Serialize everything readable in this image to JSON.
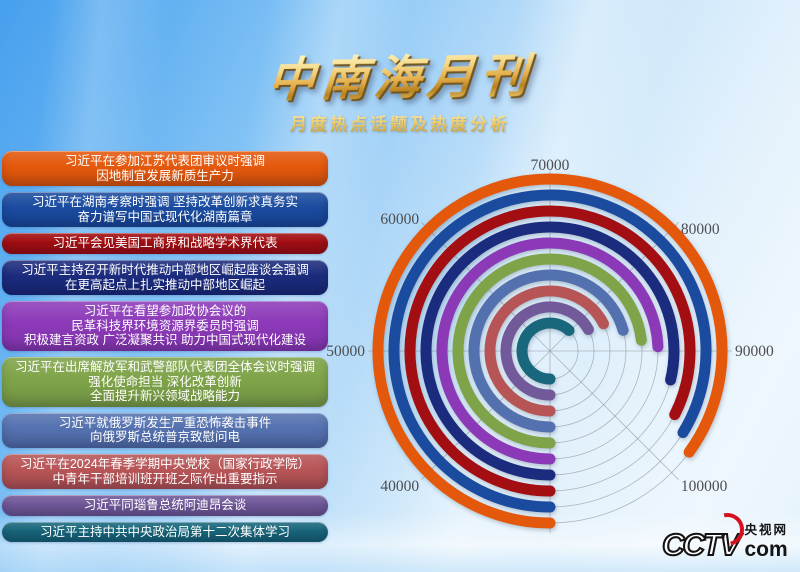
{
  "title": "中南海月刊",
  "subtitle": "月度热点话题及热度分析",
  "logo": {
    "wordmark": "CCTV",
    "site_cn": "央视网",
    "site_suffix": "com"
  },
  "topics": [
    {
      "color": "#E4580C",
      "lines": [
        "习近平在参加江苏代表团审议时强调",
        "因地制宜发展新质生产力"
      ]
    },
    {
      "color": "#1A4B9F",
      "lines": [
        "习近平在湖南考察时强调 坚持改革创新求真务实",
        "奋力谱写中国式现代化湖南篇章"
      ]
    },
    {
      "color": "#A30E12",
      "lines": [
        "习近平会见美国工商界和战略学术界代表"
      ]
    },
    {
      "color": "#1B2B7D",
      "lines": [
        "习近平主持召开新时代推动中部地区崛起座谈会强调",
        "在更高起点上扎实推动中部地区崛起"
      ]
    },
    {
      "color": "#8C39B8",
      "lines": [
        "习近平在看望参加政协会议的",
        "民革科技界环境资源界委员时强调",
        "积极建言资政 广泛凝聚共识 助力中国式现代化建设"
      ]
    },
    {
      "color": "#7EA348",
      "lines": [
        "习近平在出席解放军和武警部队代表团全体会议时强调",
        "强化使命担当 深化改革创新",
        "全面提升新兴领域战略能力"
      ]
    },
    {
      "color": "#5471AF",
      "lines": [
        "习近平就俄罗斯发生严重恐怖袭击事件",
        "向俄罗斯总统普京致慰问电"
      ]
    },
    {
      "color": "#B75456",
      "lines": [
        "习近平在2024年春季学期中央党校（国家行政学院）",
        "中青年干部培训班开班之际作出重要指示"
      ]
    },
    {
      "color": "#71599A",
      "lines": [
        "习近平同瑙鲁总统阿迪昂会谈"
      ]
    },
    {
      "color": "#18677C",
      "lines": [
        "习近平主持中共中央政治局第十二次集体学习"
      ]
    }
  ],
  "chart_data": {
    "type": "radial-bar",
    "title": "月度热点话题及热度分析",
    "legend_position": "left-list",
    "grid": {
      "spokes": 8,
      "ring_gridlines": 10,
      "grid_on": true
    },
    "angle_axis": {
      "min": 30000,
      "start_angle_deg": 270,
      "direction": "clockwise",
      "degrees_per_10000": 45,
      "ticks": [
        {
          "label": "40000",
          "value": 40000,
          "angle_deg": 225
        },
        {
          "label": "50000",
          "value": 50000,
          "angle_deg": 180
        },
        {
          "label": "60000",
          "value": 60000,
          "angle_deg": 135
        },
        {
          "label": "70000",
          "value": 70000,
          "angle_deg": 90
        },
        {
          "label": "80000",
          "value": 80000,
          "angle_deg": 45
        },
        {
          "label": "90000",
          "value": 90000,
          "angle_deg": 0
        },
        {
          "label": "100000",
          "value": 100000,
          "angle_deg": -45
        }
      ]
    },
    "series": [
      {
        "name": "习近平在参加江苏代表团审议时强调",
        "value": 98000,
        "color": "#E4580C"
      },
      {
        "name": "习近平在湖南考察时强调",
        "value": 97000,
        "color": "#1A4B9F"
      },
      {
        "name": "习近平会见美国工商界和战略学术界代表",
        "value": 96000,
        "color": "#A30E12"
      },
      {
        "name": "习近平主持召开新时代推动中部地区崛起座谈会强调",
        "value": 93000,
        "color": "#1B2B7D"
      },
      {
        "name": "习近平在看望参加政协会议的民革科技界环境资源界委员时强调",
        "value": 89500,
        "color": "#8C39B8"
      },
      {
        "name": "习近平在出席解放军和武警部队代表团全体会议时强调",
        "value": 88500,
        "color": "#7EA348"
      },
      {
        "name": "习近平就俄罗斯发生严重恐怖袭击事件向俄罗斯总统普京致慰问电",
        "value": 86500,
        "color": "#5471AF"
      },
      {
        "name": "习近平在2024年春季学期中央党校（国家行政学院）中青年干部培训班开班之际作出重要指示",
        "value": 84000,
        "color": "#B75456"
      },
      {
        "name": "习近平同瑙鲁总统阿迪昂会谈",
        "value": 83500,
        "color": "#71599A"
      },
      {
        "name": "习近平主持中共中央政治局第十二次集体学习",
        "value": 79500,
        "color": "#18677C"
      }
    ]
  }
}
